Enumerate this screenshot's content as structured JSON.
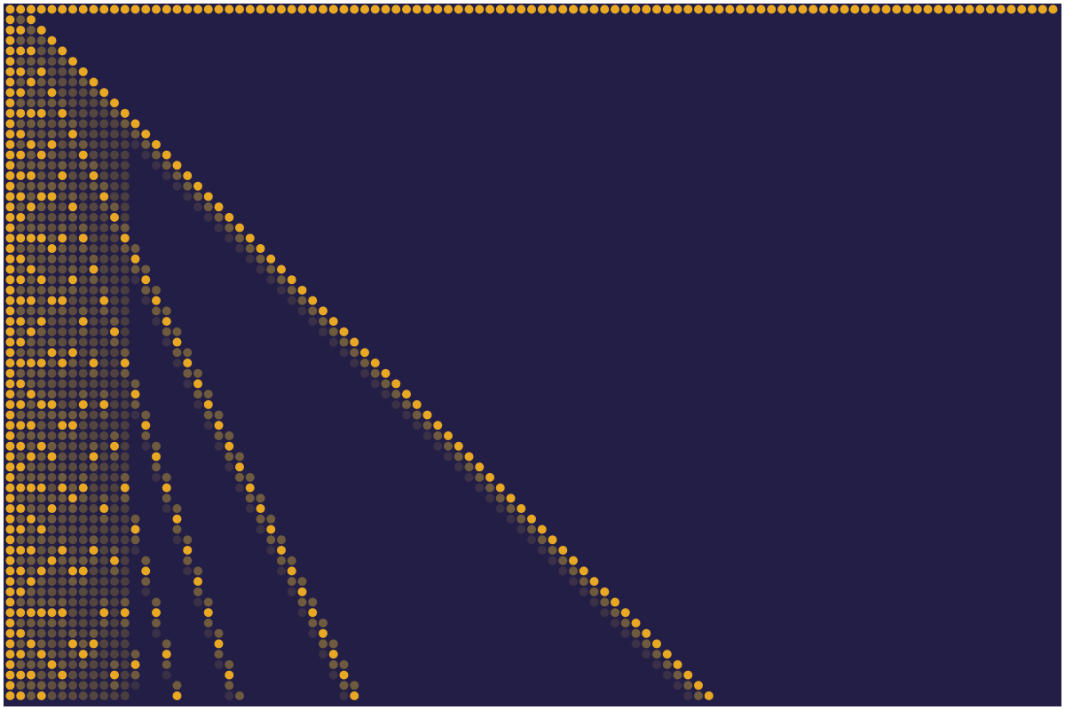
{
  "colors": {
    "background": "#231e45",
    "page": "#ffffff",
    "dot_on": "#e8a823",
    "dot_dim": "#6e5a3e",
    "dot_faint": "#3a3048"
  },
  "pattern": {
    "kind": "remainder-grid",
    "description_key": "modular-dot-matrix",
    "rows": 68,
    "cols": 102
  }
}
